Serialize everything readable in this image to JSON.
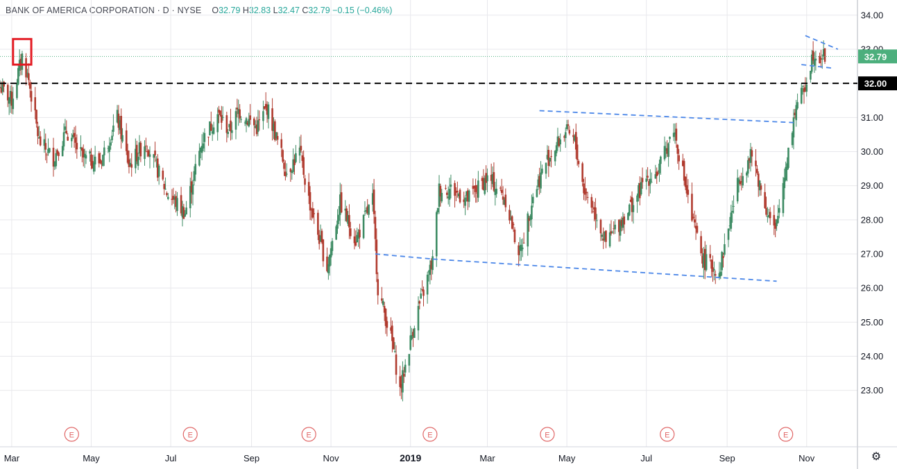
{
  "header": {
    "symbol": "BANK OF AMERICA CORPORATION · D · NYSE",
    "open_label": "O",
    "open": "32.79",
    "high_label": "H",
    "high": "32.83",
    "low_label": "L",
    "low": "32.47",
    "close_label": "C",
    "close": "32.79",
    "change": "−0.15 (−0.46%)"
  },
  "colors": {
    "up": "#3d8b63",
    "down": "#b03a2e",
    "trendline": "#4a86e8",
    "support": "#000000",
    "highlight": "#e31b23",
    "grid": "#e8e8ec",
    "price_badge": "#4caf7d",
    "earnings": "#e06666"
  },
  "settings_icon": "gear-icon",
  "chart_data": {
    "type": "candlestick",
    "ylim": [
      22.2,
      34.2
    ],
    "yticks": [
      "23.00",
      "24.00",
      "25.00",
      "26.00",
      "27.00",
      "28.00",
      "29.00",
      "30.00",
      "31.00",
      "32.00",
      "33.00",
      "34.00"
    ],
    "xlabels": [
      "Mar",
      "May",
      "Jul",
      "Sep",
      "Nov",
      "2019",
      "Mar",
      "May",
      "Jul",
      "Sep",
      "Nov"
    ],
    "xlabel_dates": [
      "2018-03-01",
      "2018-05-01",
      "2018-07-01",
      "2018-09-01",
      "2018-11-01",
      "2019-01-01",
      "2019-03-01",
      "2019-05-01",
      "2019-07-01",
      "2019-09-01",
      "2019-11-01"
    ],
    "x_range": [
      "2018-02-20",
      "2019-12-10"
    ],
    "last_price": "32.79",
    "support_level": "32.00",
    "earnings_markers": [
      "2018-04-16",
      "2018-07-16",
      "2018-10-15",
      "2019-01-16",
      "2019-04-16",
      "2019-07-17",
      "2019-10-16"
    ],
    "earnings_label": "E",
    "trendlines": [
      {
        "from": [
          "2018-12-05",
          27.0
        ],
        "to": [
          "2019-01-18",
          26.85
        ]
      },
      {
        "from": [
          "2019-01-18",
          26.85
        ],
        "to": [
          "2019-10-09",
          26.2
        ]
      },
      {
        "from": [
          "2019-04-10",
          31.2
        ],
        "to": [
          "2019-10-22",
          30.85
        ]
      },
      {
        "from": [
          "2019-10-28",
          32.55
        ],
        "to": [
          "2019-11-20",
          32.45
        ]
      },
      {
        "from": [
          "2019-10-31",
          33.4
        ],
        "to": [
          "2019-11-25",
          33.0
        ]
      }
    ],
    "highlight_box": {
      "from": "2018-03-02",
      "to": "2018-03-16",
      "low": 32.55,
      "high": 33.3
    },
    "waypoints": [
      [
        "2018-02-20",
        31.9
      ],
      [
        "2018-03-01",
        31.5
      ],
      [
        "2018-03-09",
        32.8
      ],
      [
        "2018-03-14",
        32.1
      ],
      [
        "2018-03-22",
        30.3
      ],
      [
        "2018-04-02",
        29.8
      ],
      [
        "2018-04-12",
        30.6
      ],
      [
        "2018-04-25",
        29.8
      ],
      [
        "2018-05-08",
        29.7
      ],
      [
        "2018-05-21",
        31.0
      ],
      [
        "2018-05-30",
        29.6
      ],
      [
        "2018-06-12",
        30.3
      ],
      [
        "2018-06-28",
        28.8
      ],
      [
        "2018-07-12",
        28.2
      ],
      [
        "2018-07-25",
        30.3
      ],
      [
        "2018-08-06",
        31.1
      ],
      [
        "2018-08-15",
        30.6
      ],
      [
        "2018-08-22",
        31.2
      ],
      [
        "2018-09-05",
        30.7
      ],
      [
        "2018-09-13",
        31.3
      ],
      [
        "2018-09-28",
        29.4
      ],
      [
        "2018-10-08",
        30.0
      ],
      [
        "2018-10-15",
        28.6
      ],
      [
        "2018-10-29",
        26.6
      ],
      [
        "2018-11-08",
        28.5
      ],
      [
        "2018-11-20",
        27.4
      ],
      [
        "2018-12-03",
        28.6
      ],
      [
        "2018-12-07",
        26.0
      ],
      [
        "2018-12-18",
        24.4
      ],
      [
        "2018-12-24",
        23.0
      ],
      [
        "2019-01-04",
        25.0
      ],
      [
        "2019-01-18",
        26.8
      ],
      [
        "2019-01-23",
        28.9
      ],
      [
        "2019-02-01",
        28.9
      ],
      [
        "2019-02-14",
        28.6
      ],
      [
        "2019-02-28",
        29.2
      ],
      [
        "2019-03-05",
        29.1
      ],
      [
        "2019-03-15",
        28.6
      ],
      [
        "2019-03-22",
        27.5
      ],
      [
        "2019-03-26",
        27.0
      ],
      [
        "2019-04-05",
        28.7
      ],
      [
        "2019-04-15",
        29.7
      ],
      [
        "2019-04-30",
        30.6
      ],
      [
        "2019-05-07",
        30.3
      ],
      [
        "2019-05-14",
        28.9
      ],
      [
        "2019-05-24",
        28.1
      ],
      [
        "2019-05-31",
        27.3
      ],
      [
        "2019-06-12",
        28.0
      ],
      [
        "2019-06-21",
        28.5
      ],
      [
        "2019-07-01",
        29.2
      ],
      [
        "2019-07-10",
        29.4
      ],
      [
        "2019-07-22",
        30.7
      ],
      [
        "2019-07-30",
        29.2
      ],
      [
        "2019-08-05",
        28.0
      ],
      [
        "2019-08-14",
        26.8
      ],
      [
        "2019-08-26",
        26.5
      ],
      [
        "2019-09-10",
        29.2
      ],
      [
        "2019-09-20",
        29.9
      ],
      [
        "2019-10-02",
        28.2
      ],
      [
        "2019-10-08",
        27.6
      ],
      [
        "2019-10-16",
        29.6
      ],
      [
        "2019-10-24",
        31.4
      ],
      [
        "2019-10-30",
        31.8
      ],
      [
        "2019-11-06",
        32.9
      ],
      [
        "2019-11-12",
        32.8
      ],
      [
        "2019-11-15",
        32.79
      ]
    ]
  }
}
